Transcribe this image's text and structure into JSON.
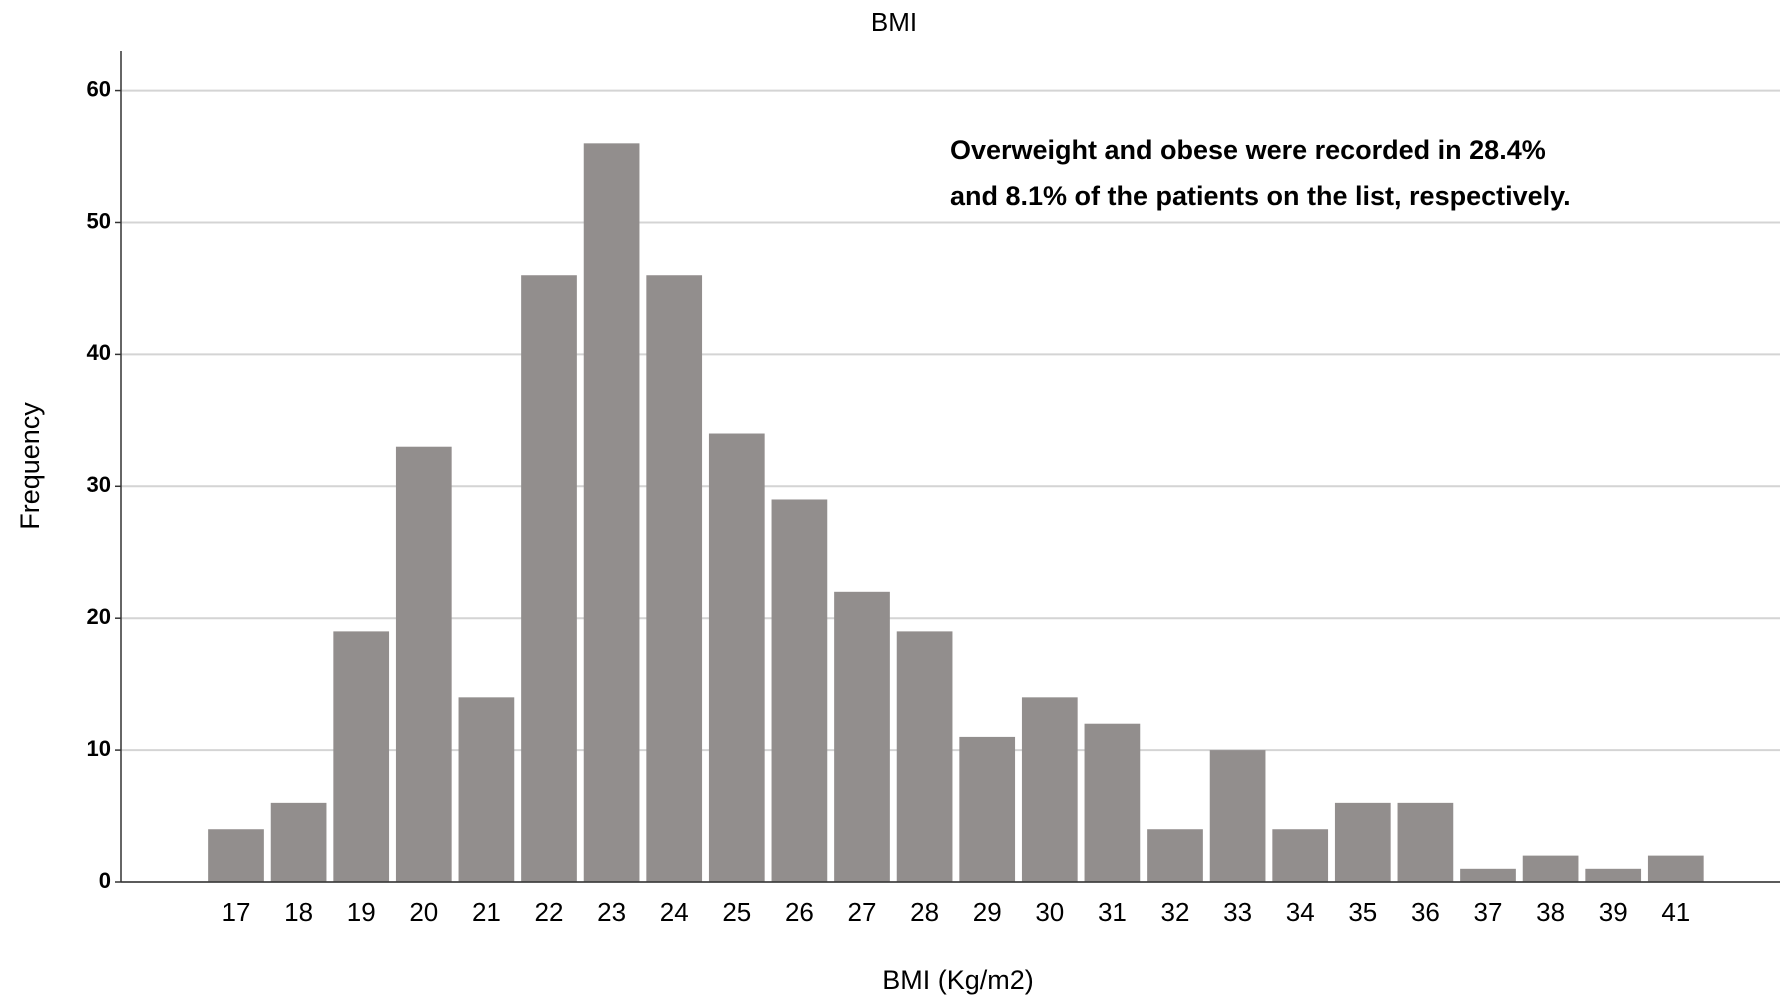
{
  "chart_data": {
    "type": "bar",
    "title": "BMI",
    "x_label": "BMI (Kg/m2)",
    "y_label": "Frequency",
    "annotation": [
      "Overweight and obese were recorded in 28.4%",
      "and 8.1% of the patients on the list, respectively."
    ],
    "categories": [
      "17",
      "18",
      "19",
      "20",
      "21",
      "22",
      "23",
      "24",
      "25",
      "26",
      "27",
      "28",
      "29",
      "30",
      "31",
      "32",
      "33",
      "34",
      "35",
      "36",
      "37",
      "38",
      "39",
      "41"
    ],
    "values": [
      4,
      6,
      19,
      33,
      14,
      46,
      56,
      46,
      34,
      29,
      22,
      19,
      11,
      14,
      12,
      4,
      10,
      4,
      6,
      6,
      1,
      2,
      1,
      2
    ],
    "color": "#928e8d",
    "ylim": [
      0,
      63
    ],
    "yticks": [
      0,
      10,
      20,
      30,
      40,
      50,
      60
    ],
    "grid": true
  }
}
